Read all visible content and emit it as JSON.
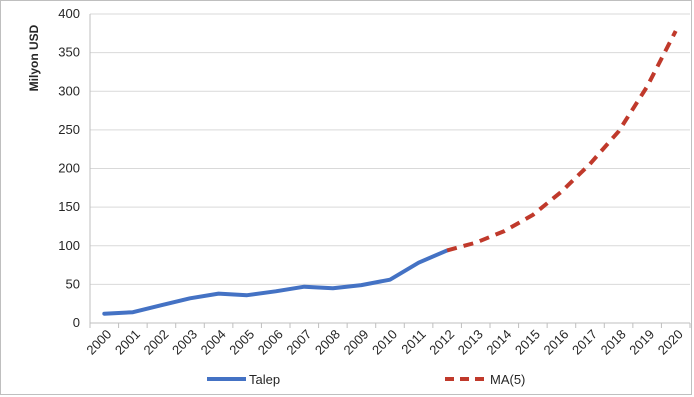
{
  "chart_data": {
    "type": "line",
    "title": "",
    "xlabel": "",
    "ylabel": "Milyon USD",
    "ylim": [
      0,
      400
    ],
    "yticks": [
      0,
      50,
      100,
      150,
      200,
      250,
      300,
      350,
      400
    ],
    "categories": [
      "2000",
      "2001",
      "2002",
      "2003",
      "2004",
      "2005",
      "2006",
      "2007",
      "2008",
      "2009",
      "2010",
      "2011",
      "2012",
      "2013",
      "2014",
      "2015",
      "2016",
      "2017",
      "2018",
      "2019",
      "2020"
    ],
    "grid": true,
    "legend_position": "bottom",
    "series": [
      {
        "name": "Talep",
        "style": "solid",
        "color": "#4472c4",
        "values": [
          12,
          14,
          23,
          32,
          38,
          36,
          41,
          47,
          45,
          49,
          56,
          78,
          94,
          null,
          null,
          null,
          null,
          null,
          null,
          null,
          null
        ]
      },
      {
        "name": "MA(5)",
        "style": "dashed",
        "color": "#c0392b",
        "values": [
          null,
          null,
          null,
          null,
          null,
          null,
          null,
          null,
          null,
          null,
          null,
          null,
          94,
          104,
          119,
          140,
          170,
          206,
          248,
          306,
          378
        ]
      }
    ]
  }
}
